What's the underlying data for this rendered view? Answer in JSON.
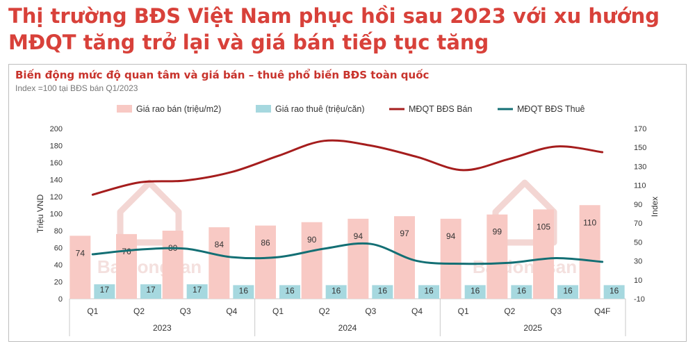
{
  "headline": {
    "line1": "Thị trường BĐS Việt Nam phục hồi sau 2023 với xu hướng",
    "line2": "MĐQT tăng trở lại và giá bán tiếp tục tăng"
  },
  "chart_data": {
    "type": "bar",
    "title": "Biến động mức độ quan tâm và giá bán – thuê phổ biến BĐS toàn quốc",
    "subtitle": "Index =100 tại BĐS bán Q1/2023",
    "categories": [
      "Q1",
      "Q2",
      "Q3",
      "Q4",
      "Q1",
      "Q2",
      "Q3",
      "Q4",
      "Q1",
      "Q2",
      "Q3",
      "Q4F"
    ],
    "groups": [
      {
        "label": "2023",
        "span": 4
      },
      {
        "label": "2024",
        "span": 4
      },
      {
        "label": "2025",
        "span": 4
      }
    ],
    "ylabel": "Triệu VND",
    "y2label": "Index",
    "ylim": [
      0,
      200
    ],
    "y2lim": [
      -10,
      170
    ],
    "yticks": [
      0,
      20,
      40,
      60,
      80,
      100,
      120,
      140,
      160,
      180,
      200
    ],
    "y2ticks": [
      -10,
      10,
      30,
      50,
      70,
      90,
      110,
      130,
      150,
      170
    ],
    "series": [
      {
        "name": "Giá rao bán (triệu/m2)",
        "kind": "bar",
        "axis": "left",
        "color": "#f8c9c4",
        "values": [
          74,
          76,
          80,
          84,
          86,
          90,
          94,
          97,
          94,
          99,
          105,
          110
        ]
      },
      {
        "name": "Giá rao thuê (triệu/căn)",
        "kind": "bar",
        "axis": "left",
        "color": "#a6d8df",
        "values": [
          17,
          17,
          17,
          16,
          16,
          16,
          16,
          16,
          16,
          16,
          16,
          16
        ]
      },
      {
        "name": "MĐQT BĐS Bán",
        "kind": "line",
        "axis": "right",
        "color": "#a51d1d",
        "values": [
          100,
          113,
          115,
          124,
          141,
          157,
          152,
          140,
          126,
          138,
          151,
          145
        ]
      },
      {
        "name": "MĐQT BĐS Thuê",
        "kind": "line",
        "axis": "right",
        "color": "#136f74",
        "values": [
          37,
          42,
          43,
          34,
          34,
          43,
          48,
          30,
          27,
          28,
          33,
          29
        ]
      }
    ],
    "watermark": "Batdongsan"
  }
}
